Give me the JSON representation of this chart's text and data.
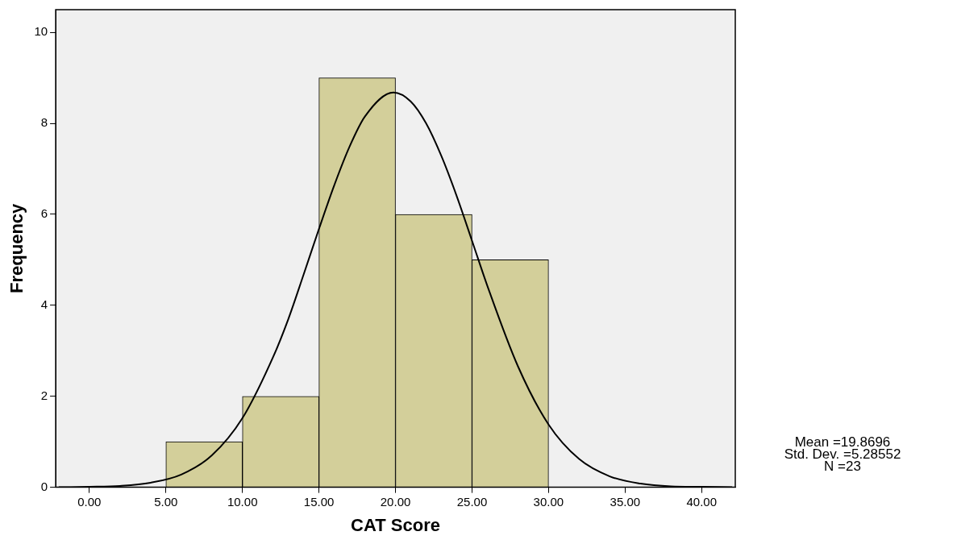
{
  "chart_data": {
    "type": "histogram",
    "xlabel": "CAT Score",
    "ylabel": "Frequency",
    "series": [
      {
        "color": "#d3cf9a",
        "bins": [
          5,
          10,
          15,
          20,
          25,
          30
        ],
        "values": [
          1,
          2,
          9,
          6,
          5
        ]
      },
      {
        "type": "line",
        "color": "#000000",
        "x": [
          -2,
          0,
          2,
          4,
          6,
          8,
          10,
          12,
          13,
          14,
          15,
          16,
          17,
          18,
          19.87,
          21,
          22,
          23,
          24,
          25,
          26,
          28,
          30,
          32,
          34,
          36,
          38,
          40,
          42
        ],
        "values": [
          0,
          0.01,
          0.03,
          0.1,
          0.28,
          0.7,
          1.52,
          2.86,
          3.7,
          4.68,
          5.68,
          6.64,
          7.49,
          8.15,
          8.68,
          8.48,
          8.0,
          7.28,
          6.4,
          5.42,
          4.43,
          2.66,
          1.38,
          0.62,
          0.24,
          0.08,
          0.02,
          0.01,
          0
        ]
      }
    ],
    "marker": "none",
    "line_style": "solid",
    "grid": false,
    "legend": false,
    "xlim": [
      -2.2,
      42.2
    ],
    "ylim": [
      0,
      10.5
    ],
    "xticks": [
      {
        "value": 0,
        "label": "0.00"
      },
      {
        "value": 5,
        "label": "5.00"
      },
      {
        "value": 10,
        "label": "10.00"
      },
      {
        "value": 15,
        "label": "15.00"
      },
      {
        "value": 20,
        "label": "20.00"
      },
      {
        "value": 25,
        "label": "25.00"
      },
      {
        "value": 30,
        "label": "30.00"
      },
      {
        "value": 35,
        "label": "35.00"
      },
      {
        "value": 40,
        "label": "40.00"
      }
    ],
    "yticks": [
      0,
      2,
      4,
      6,
      8,
      10
    ],
    "annotations": [
      "Mean =19.8696",
      "Std. Dev. =5.28552",
      "N =23"
    ]
  }
}
